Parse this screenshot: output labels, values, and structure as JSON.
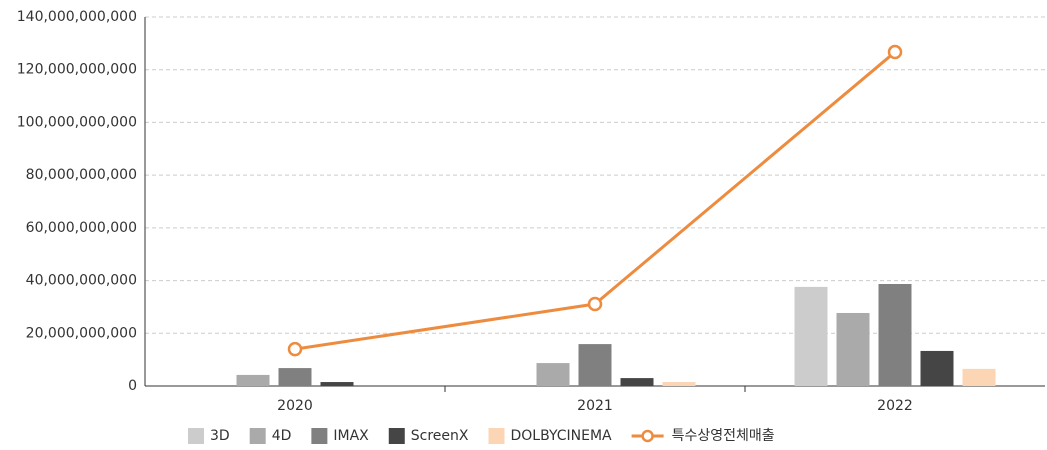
{
  "chart_data": {
    "type": "bar",
    "categories": [
      "2020",
      "2021",
      "2022"
    ],
    "series": [
      {
        "name": "3D",
        "color": "#cccccc",
        "values": [
          0,
          0,
          37600000000
        ]
      },
      {
        "name": "4D",
        "color": "#aaaaaa",
        "values": [
          4200000000,
          8700000000,
          27700000000
        ]
      },
      {
        "name": "IMAX",
        "color": "#808080",
        "values": [
          6800000000,
          15900000000,
          38700000000
        ]
      },
      {
        "name": "ScreenX",
        "color": "#454545",
        "values": [
          1500000000,
          3000000000,
          13300000000
        ]
      },
      {
        "name": "DOLBYCINEMA",
        "color": "#fcd5b5",
        "values": [
          0,
          1500000000,
          6500000000
        ]
      },
      {
        "name": "특수상영전체매출",
        "color": "#ed8b3f",
        "type": "line",
        "values": [
          14000000000,
          31100000000,
          126700000000
        ]
      }
    ],
    "ylim": [
      0,
      140000000000
    ],
    "yticks": [
      0,
      {
        "value": 20000000000,
        "label": "20,000,000,000"
      },
      {
        "value": 40000000000,
        "label": "40,000,000,000"
      },
      {
        "value": 60000000000,
        "label": "60,000,000,000"
      },
      {
        "value": 80000000000,
        "label": "80,000,000,000"
      },
      {
        "value": 100000000000,
        "label": "100,000,000,000"
      },
      {
        "value": 120000000000,
        "label": "120,000,000,000"
      },
      {
        "value": 140000000000,
        "label": "140,000,000,000"
      }
    ],
    "grid": true,
    "legend": "bottom"
  }
}
